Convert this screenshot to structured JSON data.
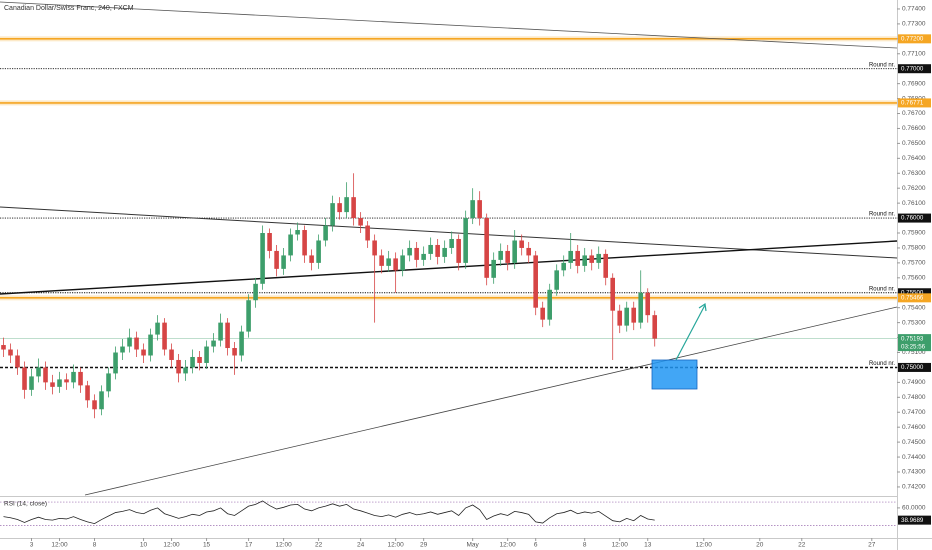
{
  "chart_data": {
    "type": "candlestick",
    "title": "Canadian Dollar/Swiss Franc, 240, FXCM",
    "up_color": "#3d9e6b",
    "down_color": "#d64545",
    "xlim": [
      -0.5,
      127.6
    ],
    "ylim": [
      0.74146,
      0.7746
    ],
    "xticks": [
      {
        "value": 4,
        "label": "3"
      },
      {
        "value": 8,
        "label": "12:00"
      },
      {
        "value": 13,
        "label": "8"
      },
      {
        "value": 20,
        "label": "10"
      },
      {
        "value": 24,
        "label": "12:00"
      },
      {
        "value": 29,
        "label": "15"
      },
      {
        "value": 35,
        "label": "17"
      },
      {
        "value": 40,
        "label": "12:00"
      },
      {
        "value": 45,
        "label": "22"
      },
      {
        "value": 51,
        "label": "24"
      },
      {
        "value": 56,
        "label": "12:00"
      },
      {
        "value": 60,
        "label": "29"
      },
      {
        "value": 67,
        "label": "May"
      },
      {
        "value": 72,
        "label": "12:00"
      },
      {
        "value": 76,
        "label": "6"
      },
      {
        "value": 83,
        "label": "8"
      },
      {
        "value": 88,
        "label": "12:00"
      },
      {
        "value": 92,
        "label": "13"
      },
      {
        "value": 100,
        "label": "12:00"
      },
      {
        "value": 108,
        "label": "20"
      },
      {
        "value": 114,
        "label": "22"
      },
      {
        "value": 124,
        "label": "27"
      }
    ],
    "yticks": [
      {
        "value": 0.742,
        "label": "0.74200"
      },
      {
        "value": 0.743,
        "label": "0.74300"
      },
      {
        "value": 0.744,
        "label": "0.74400"
      },
      {
        "value": 0.745,
        "label": "0.74500"
      },
      {
        "value": 0.746,
        "label": "0.74600"
      },
      {
        "value": 0.747,
        "label": "0.74700"
      },
      {
        "value": 0.748,
        "label": "0.74800"
      },
      {
        "value": 0.749,
        "label": "0.74900"
      },
      {
        "value": 0.75,
        "label": "0.75000"
      },
      {
        "value": 0.751,
        "label": "0.75100"
      },
      {
        "value": 0.752,
        "label": "0.75200"
      },
      {
        "value": 0.753,
        "label": "0.75300"
      },
      {
        "value": 0.754,
        "label": "0.75400"
      },
      {
        "value": 0.755,
        "label": "0.75500"
      },
      {
        "value": 0.756,
        "label": "0.75600"
      },
      {
        "value": 0.757,
        "label": "0.75700"
      },
      {
        "value": 0.758,
        "label": "0.75800"
      },
      {
        "value": 0.759,
        "label": "0.75900"
      },
      {
        "value": 0.76,
        "label": "0.76000"
      },
      {
        "value": 0.761,
        "label": "0.76100"
      },
      {
        "value": 0.762,
        "label": "0.76200"
      },
      {
        "value": 0.763,
        "label": "0.76300"
      },
      {
        "value": 0.764,
        "label": "0.76400"
      },
      {
        "value": 0.765,
        "label": "0.76500"
      },
      {
        "value": 0.766,
        "label": "0.76600"
      },
      {
        "value": 0.767,
        "label": "0.76700"
      },
      {
        "value": 0.768,
        "label": "0.76800"
      },
      {
        "value": 0.769,
        "label": "0.76900"
      },
      {
        "value": 0.77,
        "label": "0.77000"
      },
      {
        "value": 0.771,
        "label": "0.77100"
      },
      {
        "value": 0.772,
        "label": "0.77200"
      },
      {
        "value": 0.773,
        "label": "0.77300"
      },
      {
        "value": 0.774,
        "label": "0.77400"
      }
    ],
    "open": [
      0.7515,
      0.7512,
      0.7508,
      0.75,
      0.7485,
      0.7494,
      0.75,
      0.749,
      0.7487,
      0.7492,
      0.749,
      0.7497,
      0.7488,
      0.7478,
      0.7472,
      0.7484,
      0.7496,
      0.751,
      0.7514,
      0.752,
      0.7512,
      0.7508,
      0.7522,
      0.753,
      0.7512,
      0.7505,
      0.7496,
      0.75,
      0.7507,
      0.7503,
      0.7514,
      0.7518,
      0.753,
      0.7513,
      0.7508,
      0.7524,
      0.7545,
      0.7556,
      0.759,
      0.7578,
      0.7566,
      0.7575,
      0.7589,
      0.7592,
      0.7575,
      0.757,
      0.7585,
      0.7595,
      0.761,
      0.7604,
      0.7614,
      0.76,
      0.7595,
      0.7585,
      0.7575,
      0.7568,
      0.7573,
      0.7565,
      0.7575,
      0.758,
      0.7572,
      0.7576,
      0.7582,
      0.7574,
      0.758,
      0.7586,
      0.757,
      0.76,
      0.7612,
      0.76,
      0.756,
      0.7572,
      0.7578,
      0.757,
      0.7585,
      0.758,
      0.7575,
      0.754,
      0.7532,
      0.7552,
      0.7565,
      0.757,
      0.7578,
      0.7568,
      0.7575,
      0.757,
      0.7576,
      0.756,
      0.7538,
      0.7528,
      0.754,
      0.753,
      0.755,
      0.7535
    ],
    "high": [
      0.752,
      0.7516,
      0.7512,
      0.7504,
      0.7499,
      0.7506,
      0.7504,
      0.7495,
      0.7497,
      0.7496,
      0.7502,
      0.75,
      0.7491,
      0.7482,
      0.7488,
      0.75,
      0.7514,
      0.7519,
      0.7526,
      0.7524,
      0.7516,
      0.7526,
      0.7535,
      0.7533,
      0.7516,
      0.7509,
      0.7505,
      0.7512,
      0.7511,
      0.7518,
      0.7523,
      0.7536,
      0.7533,
      0.7517,
      0.7528,
      0.7549,
      0.756,
      0.7595,
      0.7593,
      0.7582,
      0.758,
      0.7593,
      0.7597,
      0.7595,
      0.7579,
      0.7589,
      0.76,
      0.7615,
      0.7614,
      0.7624,
      0.763,
      0.7604,
      0.7598,
      0.7589,
      0.7579,
      0.7578,
      0.7577,
      0.7579,
      0.7585,
      0.7584,
      0.7581,
      0.7587,
      0.7586,
      0.7585,
      0.7591,
      0.7589,
      0.7605,
      0.762,
      0.7618,
      0.7603,
      0.7577,
      0.7583,
      0.7582,
      0.7592,
      0.7589,
      0.7584,
      0.7578,
      0.7544,
      0.7556,
      0.7569,
      0.7575,
      0.759,
      0.7582,
      0.758,
      0.7579,
      0.7581,
      0.7579,
      0.7563,
      0.7542,
      0.7544,
      0.7544,
      0.7565,
      0.7553,
      0.7538
    ],
    "low": [
      0.7507,
      0.7503,
      0.7495,
      0.7479,
      0.7481,
      0.749,
      0.7485,
      0.7482,
      0.7483,
      0.7485,
      0.7486,
      0.7483,
      0.7473,
      0.7466,
      0.7468,
      0.748,
      0.7492,
      0.7505,
      0.751,
      0.7507,
      0.7503,
      0.7504,
      0.7518,
      0.7508,
      0.75,
      0.749,
      0.7491,
      0.7496,
      0.7498,
      0.7499,
      0.751,
      0.7514,
      0.7508,
      0.7495,
      0.7504,
      0.752,
      0.754,
      0.7552,
      0.7573,
      0.7561,
      0.7562,
      0.7571,
      0.7585,
      0.757,
      0.7565,
      0.7566,
      0.7581,
      0.7591,
      0.7599,
      0.76,
      0.7595,
      0.759,
      0.758,
      0.753,
      0.7563,
      0.7564,
      0.755,
      0.7561,
      0.7571,
      0.7567,
      0.7568,
      0.7572,
      0.7569,
      0.757,
      0.7576,
      0.7565,
      0.7566,
      0.7596,
      0.7595,
      0.7555,
      0.7556,
      0.7568,
      0.7565,
      0.7566,
      0.7575,
      0.757,
      0.7535,
      0.7527,
      0.7528,
      0.7548,
      0.7561,
      0.7566,
      0.7563,
      0.7564,
      0.7565,
      0.7566,
      0.7555,
      0.7505,
      0.7523,
      0.7524,
      0.7525,
      0.7526,
      0.753,
      0.7514
    ],
    "close": [
      0.7512,
      0.7508,
      0.75,
      0.7485,
      0.7494,
      0.75,
      0.749,
      0.7487,
      0.7492,
      0.749,
      0.7497,
      0.7488,
      0.7478,
      0.7472,
      0.7484,
      0.7496,
      0.751,
      0.7514,
      0.752,
      0.7512,
      0.7508,
      0.7522,
      0.753,
      0.7512,
      0.7505,
      0.7496,
      0.75,
      0.7507,
      0.7503,
      0.7514,
      0.7518,
      0.753,
      0.7513,
      0.7508,
      0.7524,
      0.7545,
      0.7556,
      0.759,
      0.7578,
      0.7566,
      0.7575,
      0.7589,
      0.7592,
      0.7575,
      0.757,
      0.7585,
      0.7595,
      0.761,
      0.7604,
      0.7614,
      0.76,
      0.7595,
      0.7585,
      0.7575,
      0.7568,
      0.7573,
      0.7565,
      0.7575,
      0.758,
      0.7572,
      0.7576,
      0.7582,
      0.7574,
      0.758,
      0.7586,
      0.757,
      0.76,
      0.7612,
      0.76,
      0.756,
      0.7572,
      0.7578,
      0.757,
      0.7585,
      0.758,
      0.7575,
      0.754,
      0.7532,
      0.7552,
      0.7565,
      0.757,
      0.7578,
      0.7568,
      0.7575,
      0.757,
      0.7576,
      0.756,
      0.7538,
      0.7528,
      0.754,
      0.753,
      0.755,
      0.7535,
      0.75193
    ],
    "last_price": 0.75193,
    "countdown": "03:25:56",
    "levels": [
      {
        "value": 0.772,
        "label": "0.77200",
        "color": "#f5a623",
        "style": "solid"
      },
      {
        "value": 0.77,
        "label": "0.77000",
        "color": "#111111",
        "style": "dotted",
        "note": "Round nr."
      },
      {
        "value": 0.76771,
        "color": "#f5a623",
        "style": "solid"
      },
      {
        "value": 0.76,
        "label": "0.76000",
        "color": "#111111",
        "style": "dotted",
        "note": "Round nr."
      },
      {
        "value": 0.755,
        "label": "0.75500",
        "color": "#111111",
        "style": "dotted",
        "note": "Round nr."
      },
      {
        "value": 0.75466,
        "color": "#f5a623",
        "style": "solid"
      },
      {
        "value": 0.75,
        "label": "0.75000",
        "color": "#111111",
        "style": "dashed",
        "note": "Round nr."
      }
    ],
    "rsi": {
      "title": "RSI (14, close)",
      "color": "#222222",
      "ylim": [
        10,
        77
      ],
      "bands": [
        70,
        30
      ],
      "ticks": [
        {
          "value": 60,
          "label": "60.0000"
        }
      ],
      "values": [
        45,
        43,
        40,
        35,
        40,
        44,
        40,
        39,
        42,
        41,
        45,
        40,
        36,
        33,
        40,
        46,
        52,
        54,
        57,
        52,
        50,
        56,
        60,
        50,
        46,
        42,
        45,
        49,
        47,
        53,
        55,
        60,
        50,
        47,
        55,
        63,
        66,
        72,
        64,
        58,
        61,
        65,
        66,
        58,
        55,
        60,
        63,
        67,
        63,
        66,
        58,
        55,
        51,
        47,
        45,
        48,
        44,
        49,
        52,
        48,
        50,
        53,
        49,
        52,
        55,
        47,
        60,
        65,
        57,
        40,
        46,
        50,
        47,
        54,
        52,
        49,
        36,
        34,
        43,
        50,
        52,
        56,
        50,
        53,
        51,
        54,
        46,
        38,
        36,
        42,
        38,
        47,
        41,
        38.9689
      ]
    }
  }
}
